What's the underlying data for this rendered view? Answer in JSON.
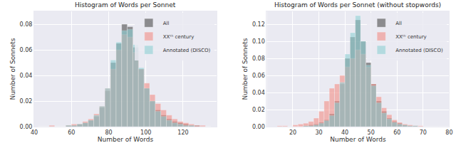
{
  "chart_data": [
    {
      "type": "histogram",
      "title": "Histogram of Words per Sonnet",
      "x_label": "Number of Words",
      "y_label": "Number of Sonnets",
      "bins": [
        42,
        45,
        48,
        51,
        54,
        57,
        60,
        63,
        66,
        69,
        72,
        75,
        78,
        81,
        84,
        87,
        90,
        93,
        96,
        99,
        102,
        105,
        108,
        111,
        114,
        117,
        120,
        123,
        126,
        129,
        132,
        135
      ],
      "series": [
        {
          "name": "All",
          "color": "#4d4d4d",
          "values": [
            0,
            0,
            0,
            0,
            0,
            0.001,
            0.001,
            0.002,
            0.003,
            0.005,
            0.008,
            0.015,
            0.028,
            0.05,
            0.065,
            0.08,
            0.078,
            0.062,
            0.045,
            0.03,
            0.02,
            0.013,
            0.009,
            0.006,
            0.004,
            0.003,
            0.002,
            0.001,
            0.001,
            0,
            0
          ]
        },
        {
          "name": "XXᵗʰ century",
          "color": "#f28e86",
          "values": [
            0,
            0,
            0.001,
            0,
            0,
            0.001,
            0.002,
            0.002,
            0.004,
            0.006,
            0.01,
            0.016,
            0.03,
            0.045,
            0.06,
            0.072,
            0.07,
            0.058,
            0.045,
            0.034,
            0.025,
            0.018,
            0.013,
            0.009,
            0.006,
            0.004,
            0.003,
            0.002,
            0.001,
            0.001,
            0
          ]
        },
        {
          "name": "Annotated (DISCO)",
          "color": "#8fd0d4",
          "values": [
            0,
            0,
            0,
            0,
            0,
            0.001,
            0.001,
            0.002,
            0.003,
            0.005,
            0.009,
            0.016,
            0.03,
            0.052,
            0.066,
            0.075,
            0.076,
            0.064,
            0.046,
            0.03,
            0.02,
            0.012,
            0.008,
            0.005,
            0.003,
            0.002,
            0.001,
            0.001,
            0,
            0,
            0
          ]
        }
      ],
      "xlim": [
        40,
        138
      ],
      "xticks": [
        40,
        60,
        80,
        100,
        120
      ],
      "ylim": [
        0,
        0.09
      ],
      "yticks": [
        {
          "value": 0,
          "label": "0.00"
        },
        {
          "value": 0.02,
          "label": "0.02"
        },
        {
          "value": 0.04,
          "label": "0.04"
        },
        {
          "value": 0.06,
          "label": "0.06"
        },
        {
          "value": 0.08,
          "label": "0.08"
        }
      ],
      "grid": true,
      "legend": "upper right"
    },
    {
      "type": "histogram",
      "title": "Histogram of Words per Sonnet (without stopwords)",
      "x_label": "Number of Words",
      "y_label": "Number of Sonnets",
      "bins": [
        14,
        16,
        18,
        20,
        22,
        24,
        26,
        28,
        30,
        32,
        34,
        36,
        38,
        40,
        42,
        44,
        46,
        48,
        50,
        52,
        54,
        56,
        58,
        60,
        62,
        64,
        66,
        68,
        70,
        72,
        74,
        76,
        78,
        80
      ],
      "series": [
        {
          "name": "All",
          "color": "#4d4d4d",
          "values": [
            0,
            0,
            0,
            0,
            0,
            0.001,
            0.002,
            0.003,
            0.005,
            0.008,
            0.015,
            0.03,
            0.05,
            0.08,
            0.105,
            0.125,
            0.1,
            0.075,
            0.05,
            0.03,
            0.018,
            0.01,
            0.006,
            0.004,
            0.002,
            0.001,
            0.001,
            0,
            0,
            0,
            0,
            0,
            0
          ]
        },
        {
          "name": "XXᵗʰ century",
          "color": "#f28e86",
          "values": [
            0.001,
            0.001,
            0,
            0.002,
            0.003,
            0.004,
            0.006,
            0.01,
            0.018,
            0.03,
            0.045,
            0.05,
            0.06,
            0.07,
            0.08,
            0.09,
            0.085,
            0.07,
            0.05,
            0.035,
            0.022,
            0.014,
            0.008,
            0.005,
            0.003,
            0.002,
            0.001,
            0.001,
            0,
            0,
            0,
            0,
            0
          ]
        },
        {
          "name": "Annotated (DISCO)",
          "color": "#8fd0d4",
          "values": [
            0,
            0,
            0,
            0,
            0,
            0.001,
            0.001,
            0.002,
            0.004,
            0.007,
            0.013,
            0.028,
            0.052,
            0.085,
            0.11,
            0.13,
            0.1,
            0.072,
            0.048,
            0.028,
            0.016,
            0.009,
            0.005,
            0.003,
            0.002,
            0.001,
            0.001,
            0,
            0,
            0,
            0,
            0,
            0
          ]
        }
      ],
      "xlim": [
        10,
        80
      ],
      "xticks": [
        20,
        30,
        40,
        50,
        60,
        70,
        80
      ],
      "ylim": [
        0,
        0.135
      ],
      "yticks": [
        {
          "value": 0,
          "label": "0.00"
        },
        {
          "value": 0.02,
          "label": "0.02"
        },
        {
          "value": 0.04,
          "label": "0.04"
        },
        {
          "value": 0.06,
          "label": "0.06"
        },
        {
          "value": 0.08,
          "label": "0.08"
        },
        {
          "value": 0.1,
          "label": "0.10"
        },
        {
          "value": 0.12,
          "label": "0.12"
        }
      ],
      "grid": true,
      "legend": "upper right"
    }
  ]
}
